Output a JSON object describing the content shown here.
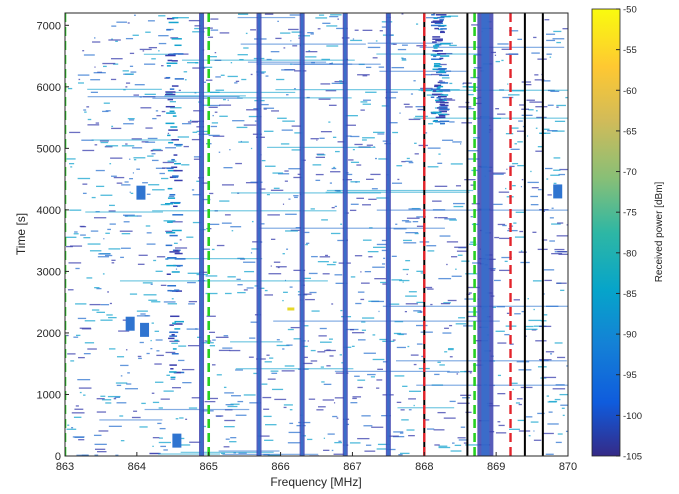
{
  "chart_data": {
    "type": "heatmap",
    "title": "",
    "xlabel": "Frequency [MHz]",
    "ylabel": "Time [s]",
    "xlim": [
      863,
      870
    ],
    "ylim": [
      0,
      7200
    ],
    "x_ticks": [
      "863",
      "864",
      "865",
      "866",
      "867",
      "868",
      "869",
      "870"
    ],
    "y_ticks": [
      "0",
      "1000",
      "2000",
      "3000",
      "4000",
      "5000",
      "6000",
      "7000"
    ],
    "colorbar": {
      "label": "Received power [dBm]",
      "range": [
        -105,
        -50
      ],
      "ticks": [
        "-50",
        "-55",
        "-60",
        "-65",
        "-70",
        "-75",
        "-80",
        "-85",
        "-90",
        "-95",
        "-100",
        "-105"
      ],
      "colormap": "parula"
    },
    "persistent_channels_mhz": [
      864.9,
      865.7,
      866.3,
      866.9,
      867.5,
      868.85
    ],
    "sub_band_boundaries": [
      {
        "freq": 863.0,
        "style": "green-dashed"
      },
      {
        "freq": 865.0,
        "style": "green-dashed"
      },
      {
        "freq": 868.0,
        "style": "black-solid"
      },
      {
        "freq": 868.0,
        "style": "red-dashed"
      },
      {
        "freq": 868.6,
        "style": "black-solid"
      },
      {
        "freq": 868.7,
        "style": "green-dashed"
      },
      {
        "freq": 869.2,
        "style": "red-dashed"
      },
      {
        "freq": 869.4,
        "style": "black-solid"
      },
      {
        "freq": 869.65,
        "style": "black-solid"
      }
    ],
    "time_spans_s": [
      {
        "x": 868.2,
        "t_start": 5400,
        "t_end": 7200
      },
      {
        "x": 864.5,
        "t_start": 1200,
        "t_end": 7200
      }
    ],
    "bursts": [
      {
        "x": 864.05,
        "t": 4280
      },
      {
        "x": 864.55,
        "t": 250
      },
      {
        "x": 863.9,
        "t": 2150
      },
      {
        "x": 864.1,
        "t": 2050
      },
      {
        "x": 869.85,
        "t": 4300
      },
      {
        "x": 866.15,
        "t": 2300
      }
    ]
  },
  "colors": {
    "signal_dark": "#3a3fae",
    "signal_mid": "#2f74d0",
    "signal_light": "#16a4cf",
    "signal_hot": "#e6d829",
    "green_line": "#27d022",
    "red_line": "#e3242b",
    "black_line": "#000000"
  }
}
